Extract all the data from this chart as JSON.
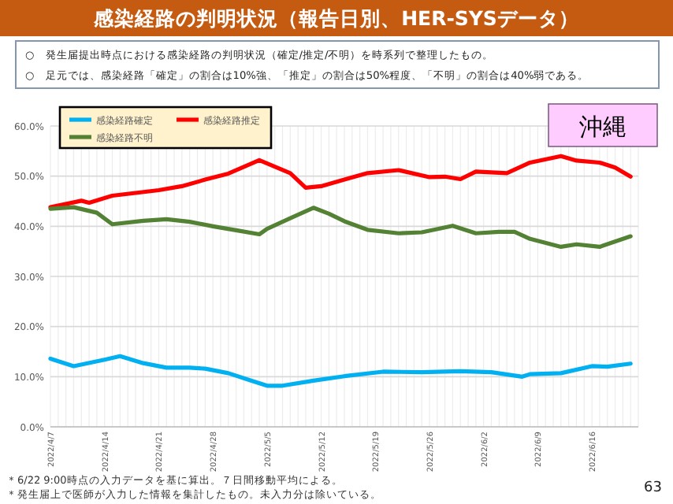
{
  "chart_data": {
    "type": "line",
    "title": "感染経路の判明状況（報告日別、HER-SYSデータ）",
    "annotations": [
      "○　発生届提出時点における感染経路の判明状況（確定/推定/不明）を時系列で整理したもの。",
      "○　足元では、感染経路「確定」の割合は10%強、「推定」の割合は50%程度、「不明」の割合は40%弱である。",
      "沖縄",
      "＊6/22 9:00時点の入力データを基に算出。７日間移動平均による。",
      "＊発生届上で医師が入力した情報を集計したもの。未入力分は除いている。",
      "63"
    ],
    "series": [
      {
        "name": "感染経路確定",
        "color": "#00b0f0",
        "x": [
          "2022-04-07",
          "2022-04-10",
          "2022-04-14",
          "2022-04-16",
          "2022-04-19",
          "2022-04-22",
          "2022-04-25",
          "2022-04-27",
          "2022-04-30",
          "2022-05-03",
          "2022-05-05",
          "2022-05-07",
          "2022-05-11",
          "2022-05-15",
          "2022-05-20",
          "2022-05-25",
          "2022-05-30",
          "2022-06-03",
          "2022-06-07",
          "2022-06-08",
          "2022-06-12",
          "2022-06-16",
          "2022-06-18",
          "2022-06-21"
        ],
        "values": [
          13.6,
          12.1,
          13.4,
          14.1,
          12.7,
          11.8,
          11.8,
          11.6,
          10.7,
          9.2,
          8.2,
          8.2,
          9.2,
          10.1,
          11.0,
          10.9,
          11.1,
          10.9,
          10.0,
          10.5,
          10.7,
          12.1,
          12.0,
          12.6
        ]
      },
      {
        "name": "感染経路推定",
        "color": "#ff0000",
        "x": [
          "2022-04-07",
          "2022-04-11",
          "2022-04-12",
          "2022-04-15",
          "2022-04-21",
          "2022-04-24",
          "2022-04-27",
          "2022-04-30",
          "2022-05-04",
          "2022-05-08",
          "2022-05-10",
          "2022-05-12",
          "2022-05-15",
          "2022-05-18",
          "2022-05-22",
          "2022-05-26",
          "2022-05-28",
          "2022-05-30",
          "2022-06-01",
          "2022-06-05",
          "2022-06-08",
          "2022-06-12",
          "2022-06-14",
          "2022-06-17",
          "2022-06-19",
          "2022-06-21"
        ],
        "values": [
          43.8,
          45.1,
          44.7,
          46.1,
          47.2,
          48.0,
          49.3,
          50.5,
          53.2,
          50.6,
          47.7,
          48.0,
          49.3,
          50.6,
          51.2,
          49.8,
          49.9,
          49.4,
          50.9,
          50.6,
          52.7,
          54.0,
          53.1,
          52.7,
          51.7,
          49.9
        ]
      },
      {
        "name": "感染経路不明",
        "color": "#548235",
        "x": [
          "2022-04-07",
          "2022-04-10",
          "2022-04-13",
          "2022-04-15",
          "2022-04-19",
          "2022-04-22",
          "2022-04-25",
          "2022-04-28",
          "2022-05-01",
          "2022-05-04",
          "2022-05-05",
          "2022-05-08",
          "2022-05-11",
          "2022-05-13",
          "2022-05-15",
          "2022-05-18",
          "2022-05-22",
          "2022-05-25",
          "2022-05-29",
          "2022-06-01",
          "2022-06-04",
          "2022-06-06",
          "2022-06-08",
          "2022-06-12",
          "2022-06-14",
          "2022-06-17",
          "2022-06-21"
        ],
        "values": [
          43.5,
          43.8,
          42.7,
          40.4,
          41.1,
          41.4,
          40.9,
          40.0,
          39.2,
          38.4,
          39.5,
          41.6,
          43.7,
          42.5,
          41.0,
          39.3,
          38.6,
          38.8,
          40.1,
          38.6,
          38.9,
          38.9,
          37.5,
          35.9,
          36.4,
          35.9,
          38.0
        ]
      }
    ],
    "xlim": [
      "2022-04-07",
      "2022-06-22"
    ],
    "xticks": [
      {
        "value": "2022-04-07",
        "label": "2022/4/7"
      },
      {
        "value": "2022-04-14",
        "label": "2022/4/14"
      },
      {
        "value": "2022-04-21",
        "label": "2022/4/21"
      },
      {
        "value": "2022-04-28",
        "label": "2022/4/28"
      },
      {
        "value": "2022-05-05",
        "label": "2022/5/5"
      },
      {
        "value": "2022-05-12",
        "label": "2022/5/12"
      },
      {
        "value": "2022-05-19",
        "label": "2022/5/19"
      },
      {
        "value": "2022-05-26",
        "label": "2022/5/26"
      },
      {
        "value": "2022-06-02",
        "label": "2022/6/2"
      },
      {
        "value": "2022-06-09",
        "label": "2022/6/9"
      },
      {
        "value": "2022-06-16",
        "label": "2022/6/16"
      }
    ],
    "ylim": [
      0,
      60
    ],
    "yticks": [
      {
        "value": 0,
        "label": "0.0%"
      },
      {
        "value": 10,
        "label": "10.0%"
      },
      {
        "value": 20,
        "label": "20.0%"
      },
      {
        "value": 30,
        "label": "30.0%"
      },
      {
        "value": 40,
        "label": "40.0%"
      },
      {
        "value": 50,
        "label": "50.0%"
      },
      {
        "value": 60,
        "label": "60.0%"
      }
    ],
    "grid": true,
    "legend": "top left",
    "marker": "none",
    "line_style": "solid"
  }
}
